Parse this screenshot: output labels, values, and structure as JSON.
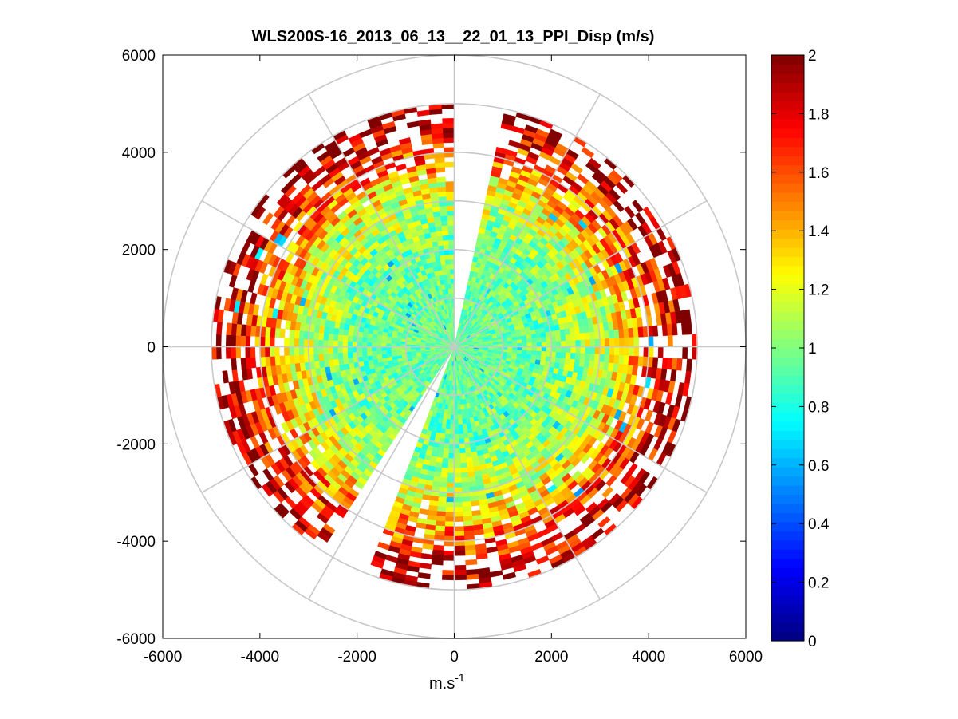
{
  "chart_data": {
    "type": "heatmap",
    "subtype": "polar-ppi",
    "title": "WLS200S-16_2013_06_13__22_01_13_PPI_Disp (m/s)",
    "xlabel": "m.s",
    "xlabel_superscript": "-1",
    "ylabel": "",
    "xlim": [
      -6000,
      6000
    ],
    "ylim": [
      -6000,
      6000
    ],
    "x_ticks": [
      "-6000",
      "-4000",
      "-2000",
      "0",
      "2000",
      "4000",
      "6000"
    ],
    "y_ticks": [
      "6000",
      "4000",
      "2000",
      "0",
      "-2000",
      "-4000",
      "-6000"
    ],
    "x_tick_values": [
      -6000,
      -4000,
      -2000,
      0,
      2000,
      4000,
      6000
    ],
    "y_tick_values": [
      6000,
      4000,
      2000,
      0,
      -2000,
      -4000,
      -6000
    ],
    "colorbar": {
      "colormap": "jet",
      "range": [
        0,
        2
      ],
      "ticks": [
        "2",
        "1.8",
        "1.6",
        "1.4",
        "1.2",
        "1",
        "0.8",
        "0.6",
        "0.4",
        "0.2",
        "0"
      ],
      "tick_values": [
        2,
        1.8,
        1.6,
        1.4,
        1.2,
        1,
        0.8,
        0.6,
        0.4,
        0.2,
        0
      ]
    },
    "polar_grid": {
      "ring_radii": [
        1000,
        2000,
        3000,
        4000,
        5000,
        6000
      ],
      "spoke_angles_deg": [
        0,
        30,
        60,
        90,
        120,
        150,
        180,
        210,
        240,
        270,
        300,
        330
      ]
    },
    "scan": {
      "max_range": 5000,
      "range_gate": 100,
      "azimuth_step_deg": 3,
      "missing_sectors_deg": [
        [
          1,
          12
        ],
        [
          200,
          212
        ]
      ],
      "description": "Dispersion is ~0.9-1.1 m/s within 3000 m and increases toward 1.5-2 m/s at the outer gates"
    },
    "profile": {
      "range_m": [
        0,
        1000,
        2000,
        2500,
        3000,
        3500,
        4000,
        4500,
        5000
      ],
      "typical_disp": [
        0.95,
        0.95,
        0.97,
        1.05,
        1.15,
        1.35,
        1.6,
        1.85,
        2.0
      ]
    }
  }
}
